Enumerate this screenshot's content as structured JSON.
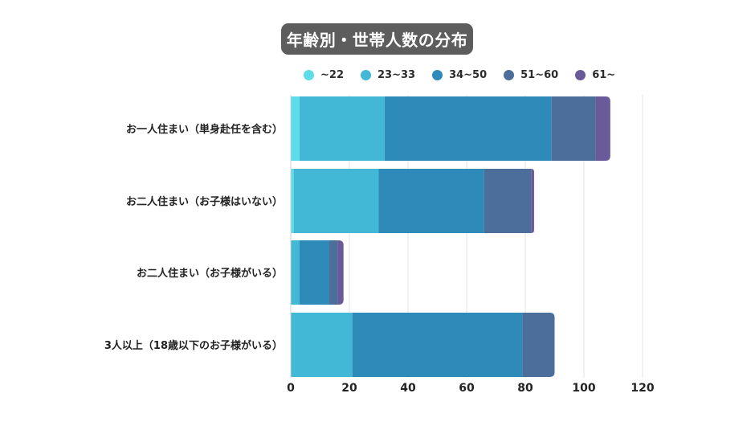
{
  "chart_data": {
    "type": "bar",
    "orientation": "horizontal",
    "stacked": true,
    "title": "年齢別・世帯人数の分布",
    "categories": [
      "お一人住まい（単身赴任を含む）",
      "お二人住まい（お子様はいない）",
      "お二人住まい（お子様がいる）",
      "3人以上（18歳以下のお子様がいる）"
    ],
    "series": [
      {
        "name": "~22",
        "color": "#5ddde8",
        "values": [
          3,
          1,
          0,
          0
        ]
      },
      {
        "name": "23~33",
        "color": "#43b8d6",
        "values": [
          29,
          29,
          3,
          21
        ]
      },
      {
        "name": "34~50",
        "color": "#2e8bb9",
        "values": [
          57,
          36,
          10,
          58
        ]
      },
      {
        "name": "51~60",
        "color": "#4b6e9b",
        "values": [
          15,
          16,
          3,
          11
        ]
      },
      {
        "name": "61~",
        "color": "#6a5a9a",
        "values": [
          5,
          1,
          2,
          0
        ]
      }
    ],
    "xlim": [
      0,
      120
    ],
    "xticks": [
      "0",
      "20",
      "40",
      "60",
      "80",
      "100",
      "120"
    ],
    "xtick_values": [
      0,
      20,
      40,
      60,
      80,
      100,
      120
    ],
    "grid": true,
    "legend_position": "top"
  }
}
